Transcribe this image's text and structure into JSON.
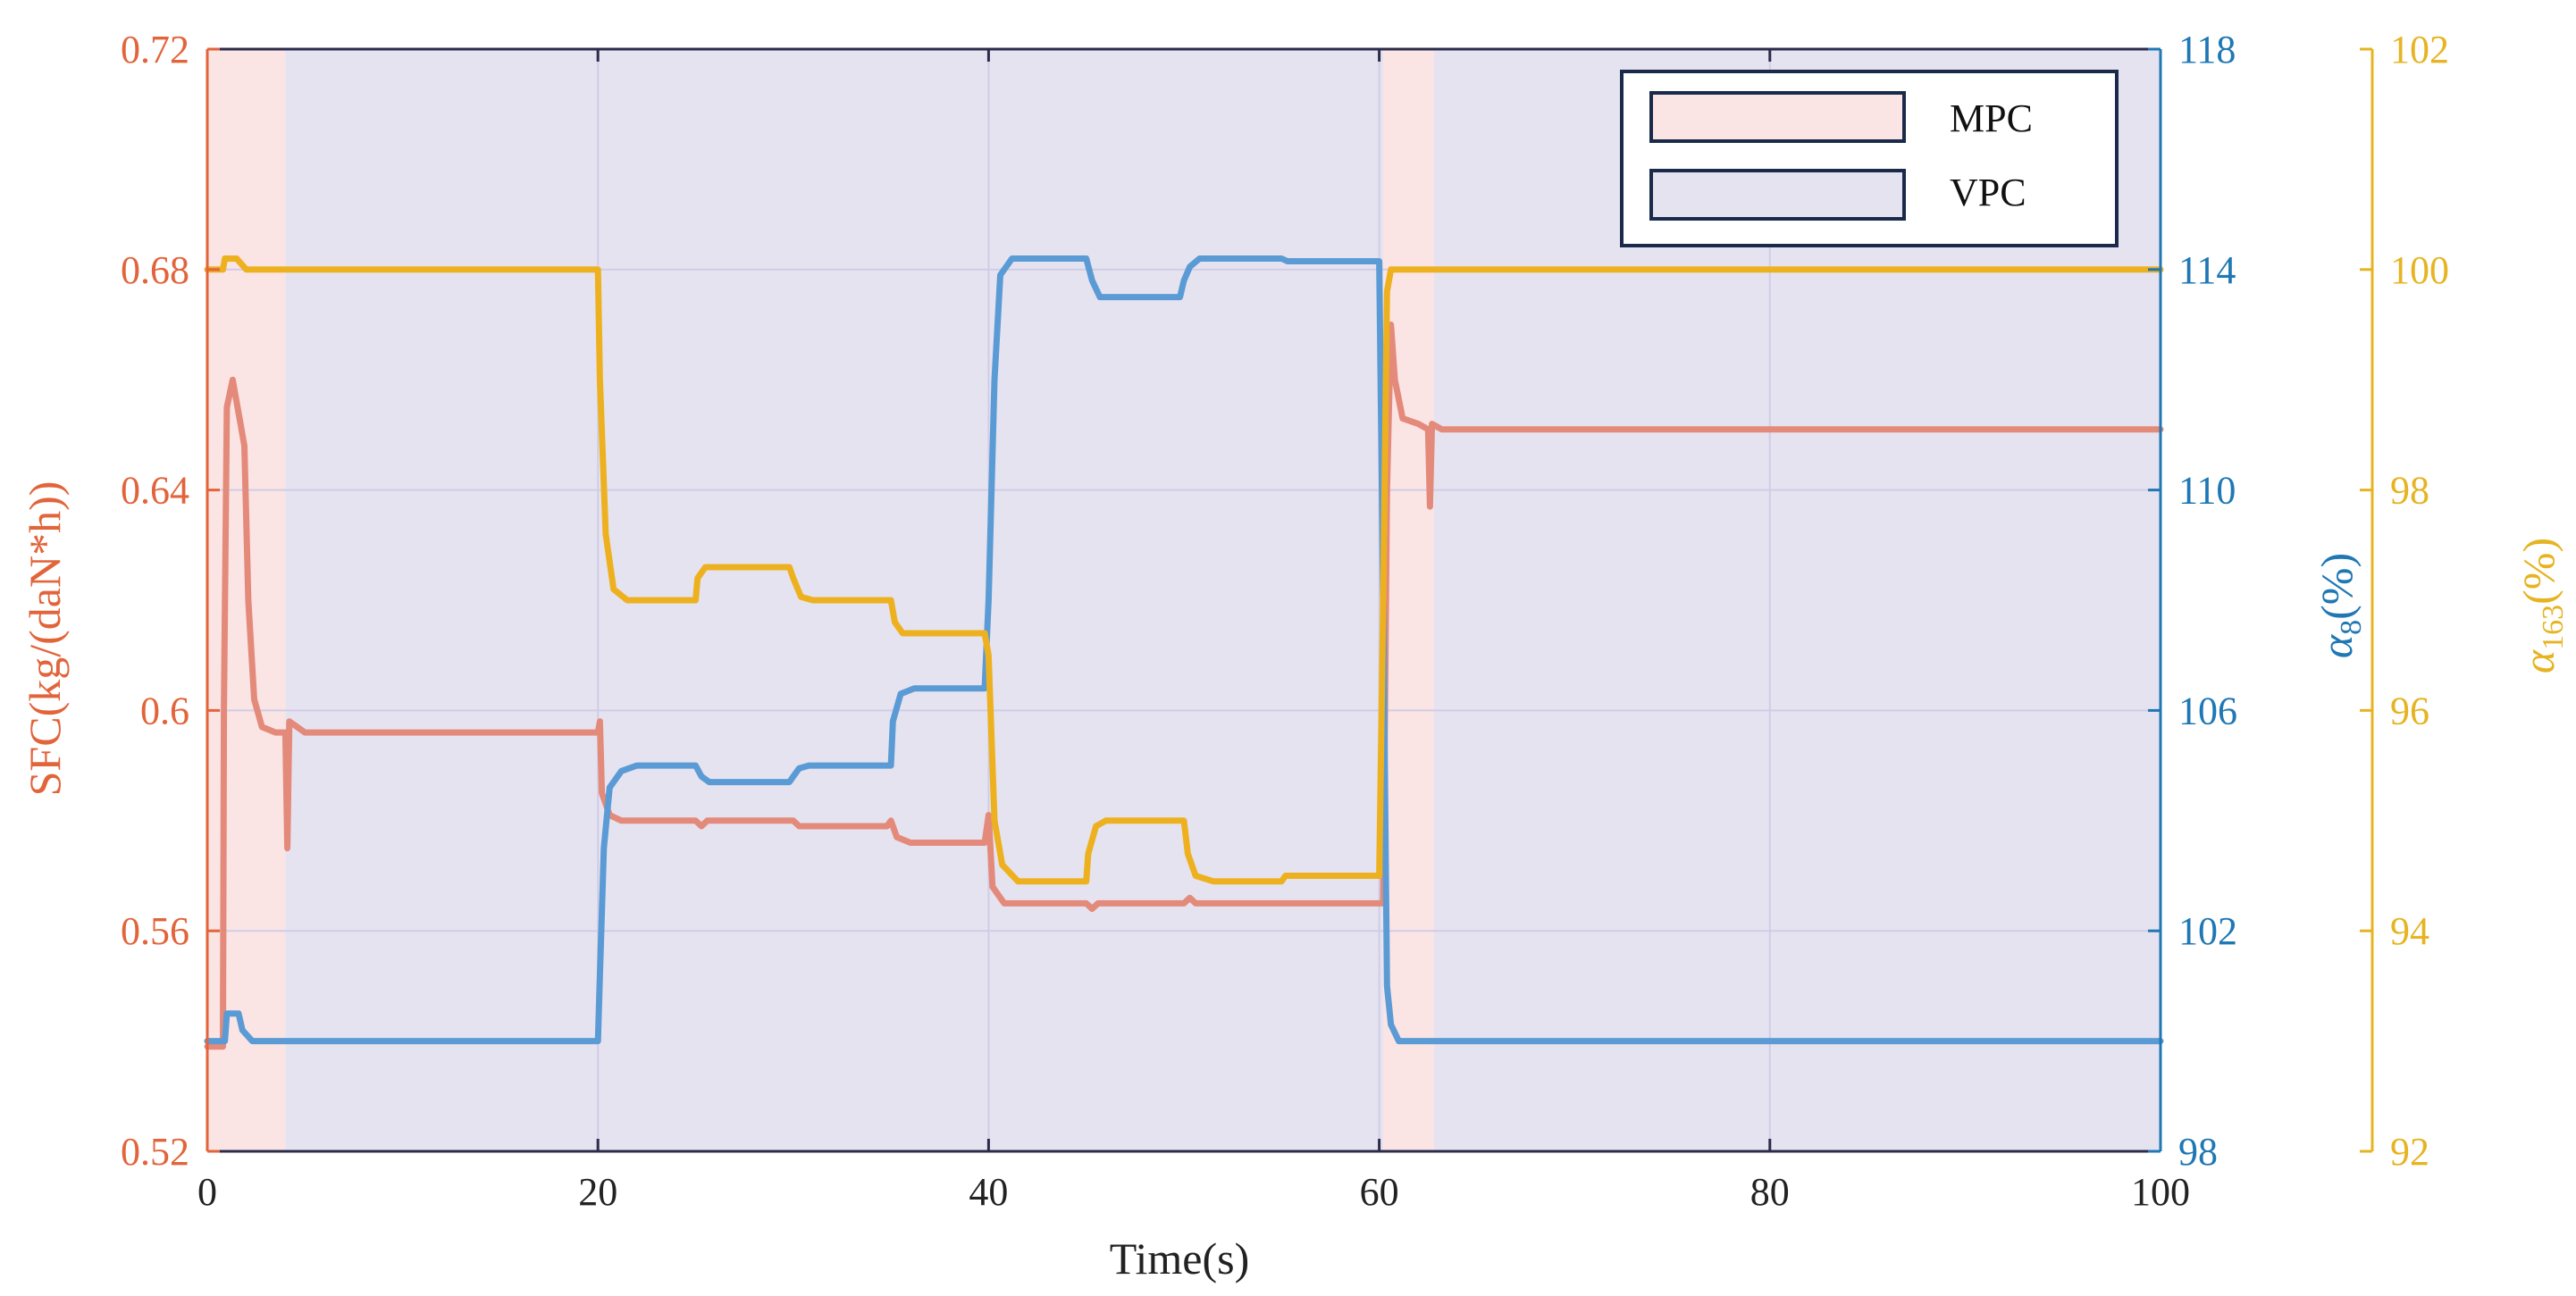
{
  "chart_data": {
    "type": "line",
    "xlabel": "Time(s)",
    "xlim": [
      0,
      100
    ],
    "xticks": [
      "0",
      "20",
      "40",
      "60",
      "80",
      "100"
    ],
    "grid": true,
    "legend_position": "top-right",
    "legend": [
      {
        "label": "MPC",
        "color": "#fbe4e4"
      },
      {
        "label": "VPC",
        "color": "#e6e3f0"
      }
    ],
    "regions": [
      {
        "mode": "MPC",
        "x": [
          0,
          4
        ]
      },
      {
        "mode": "VPC",
        "x": [
          4,
          60.2
        ]
      },
      {
        "mode": "MPC",
        "x": [
          60.2,
          62.8
        ]
      },
      {
        "mode": "VPC",
        "x": [
          62.8,
          100
        ]
      }
    ],
    "axes": {
      "left": {
        "label": "SFC(kg/(daN*h))",
        "ylim": [
          0.52,
          0.72
        ],
        "ticks": [
          "0.52",
          "0.56",
          "0.6",
          "0.64",
          "0.68",
          "0.72"
        ],
        "color": "#e2643a"
      },
      "right1": {
        "label_base": "α",
        "label_sub": "8",
        "label_unit": "(%)",
        "ylim": [
          98,
          118
        ],
        "ticks": [
          "98",
          "102",
          "106",
          "110",
          "114",
          "118"
        ],
        "color": "#1f77b4"
      },
      "right2": {
        "label_base": "α",
        "label_sub": "163",
        "label_unit": "(%)",
        "ylim": [
          92,
          102
        ],
        "ticks": [
          "92",
          "94",
          "96",
          "98",
          "100",
          "102"
        ],
        "color": "#e6b422"
      }
    },
    "series": [
      {
        "axis": "left",
        "color": "#e38a7a",
        "points": [
          [
            0,
            0.539
          ],
          [
            0.8,
            0.539
          ],
          [
            0.85,
            0.6
          ],
          [
            1.0,
            0.655
          ],
          [
            1.3,
            0.66
          ],
          [
            1.7,
            0.652
          ],
          [
            1.9,
            0.648
          ],
          [
            2.1,
            0.62
          ],
          [
            2.4,
            0.602
          ],
          [
            2.8,
            0.597
          ],
          [
            3.5,
            0.596
          ],
          [
            4.0,
            0.596
          ],
          [
            4.1,
            0.575
          ],
          [
            4.2,
            0.598
          ],
          [
            4.6,
            0.597
          ],
          [
            5.0,
            0.596
          ],
          [
            20,
            0.596
          ],
          [
            20.1,
            0.598
          ],
          [
            20.2,
            0.585
          ],
          [
            20.6,
            0.581
          ],
          [
            21.2,
            0.58
          ],
          [
            25,
            0.58
          ],
          [
            25.3,
            0.579
          ],
          [
            25.6,
            0.58
          ],
          [
            29.8,
            0.58
          ],
          [
            30.0,
            0.58
          ],
          [
            30.3,
            0.579
          ],
          [
            30.6,
            0.579
          ],
          [
            34.8,
            0.579
          ],
          [
            35.0,
            0.58
          ],
          [
            35.3,
            0.577
          ],
          [
            36,
            0.576
          ],
          [
            39.8,
            0.576
          ],
          [
            40.0,
            0.581
          ],
          [
            40.2,
            0.568
          ],
          [
            40.8,
            0.565
          ],
          [
            41.5,
            0.565
          ],
          [
            45,
            0.565
          ],
          [
            45.3,
            0.564
          ],
          [
            45.6,
            0.565
          ],
          [
            50,
            0.565
          ],
          [
            50.3,
            0.566
          ],
          [
            50.6,
            0.565
          ],
          [
            60.0,
            0.565
          ],
          [
            60.2,
            0.565
          ],
          [
            60.4,
            0.64
          ],
          [
            60.6,
            0.67
          ],
          [
            60.8,
            0.66
          ],
          [
            61.2,
            0.653
          ],
          [
            62.0,
            0.652
          ],
          [
            62.5,
            0.651
          ],
          [
            62.6,
            0.637
          ],
          [
            62.7,
            0.652
          ],
          [
            63.2,
            0.651
          ],
          [
            100,
            0.651
          ]
        ]
      },
      {
        "axis": "right1",
        "color": "#5b9bd5",
        "points": [
          [
            0,
            100
          ],
          [
            0.9,
            100
          ],
          [
            1.0,
            100.5
          ],
          [
            1.6,
            100.5
          ],
          [
            1.8,
            100.2
          ],
          [
            2.3,
            100
          ],
          [
            20,
            100
          ],
          [
            20.1,
            101.2
          ],
          [
            20.3,
            103.5
          ],
          [
            20.6,
            104.6
          ],
          [
            21.2,
            104.9
          ],
          [
            22,
            105
          ],
          [
            25,
            105
          ],
          [
            25.3,
            104.8
          ],
          [
            25.7,
            104.7
          ],
          [
            29.8,
            104.7
          ],
          [
            30.0,
            104.8
          ],
          [
            30.3,
            104.95
          ],
          [
            30.8,
            105
          ],
          [
            35,
            105
          ],
          [
            35.1,
            105.8
          ],
          [
            35.5,
            106.3
          ],
          [
            36.2,
            106.4
          ],
          [
            39.8,
            106.4
          ],
          [
            40.0,
            108
          ],
          [
            40.3,
            112
          ],
          [
            40.6,
            113.9
          ],
          [
            41.2,
            114.2
          ],
          [
            45,
            114.2
          ],
          [
            45.3,
            113.8
          ],
          [
            45.7,
            113.5
          ],
          [
            49.8,
            113.5
          ],
          [
            50.0,
            113.8
          ],
          [
            50.3,
            114.05
          ],
          [
            50.8,
            114.2
          ],
          [
            55,
            114.2
          ],
          [
            55.3,
            114.15
          ],
          [
            60.0,
            114.15
          ],
          [
            60.2,
            108
          ],
          [
            60.4,
            101
          ],
          [
            60.6,
            100.3
          ],
          [
            61.0,
            100
          ],
          [
            100,
            100
          ]
        ]
      },
      {
        "axis": "right2",
        "color": "#edb120",
        "points": [
          [
            0,
            100
          ],
          [
            0.8,
            100
          ],
          [
            0.9,
            100.1
          ],
          [
            1.5,
            100.1
          ],
          [
            2.0,
            100
          ],
          [
            20,
            100
          ],
          [
            20.1,
            99
          ],
          [
            20.4,
            97.6
          ],
          [
            20.8,
            97.1
          ],
          [
            21.5,
            97
          ],
          [
            25,
            97
          ],
          [
            25.1,
            97.2
          ],
          [
            25.5,
            97.3
          ],
          [
            29.8,
            97.3
          ],
          [
            30.0,
            97.2
          ],
          [
            30.4,
            97.03
          ],
          [
            31,
            97
          ],
          [
            35,
            97
          ],
          [
            35.2,
            96.8
          ],
          [
            35.6,
            96.7
          ],
          [
            39.8,
            96.7
          ],
          [
            40.0,
            96.5
          ],
          [
            40.3,
            95
          ],
          [
            40.7,
            94.6
          ],
          [
            41.5,
            94.45
          ],
          [
            45,
            94.45
          ],
          [
            45.1,
            94.7
          ],
          [
            45.5,
            94.95
          ],
          [
            46,
            95
          ],
          [
            50,
            95
          ],
          [
            50.2,
            94.7
          ],
          [
            50.6,
            94.5
          ],
          [
            51.5,
            94.45
          ],
          [
            55,
            94.45
          ],
          [
            55.2,
            94.5
          ],
          [
            60.0,
            94.5
          ],
          [
            60.2,
            97
          ],
          [
            60.4,
            99.8
          ],
          [
            60.6,
            100
          ],
          [
            100,
            100
          ]
        ]
      }
    ]
  }
}
